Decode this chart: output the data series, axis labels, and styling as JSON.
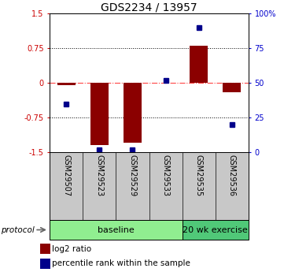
{
  "title": "GDS2234 / 13957",
  "samples": [
    "GSM29507",
    "GSM29523",
    "GSM29529",
    "GSM29533",
    "GSM29535",
    "GSM29536"
  ],
  "log2_ratio": [
    -0.05,
    -1.35,
    -1.3,
    0.0,
    0.8,
    -0.2
  ],
  "percentile_rank": [
    35,
    2,
    2,
    52,
    90,
    20
  ],
  "group_baseline_n": 4,
  "group_exercise_n": 2,
  "group_baseline_label": "baseline",
  "group_exercise_label": "20 wk exercise",
  "group_baseline_color": "#90EE90",
  "group_exercise_color": "#50C878",
  "ylim_left": [
    -1.5,
    1.5
  ],
  "ylim_right": [
    0,
    100
  ],
  "yticks_left": [
    -1.5,
    -0.75,
    0,
    0.75,
    1.5
  ],
  "ytick_labels_left": [
    "-1.5",
    "-0.75",
    "0",
    "0.75",
    "1.5"
  ],
  "ytick_labels_right": [
    "0",
    "25",
    "50",
    "75",
    "100%"
  ],
  "bar_color": "#8B0000",
  "dot_color": "#00008B",
  "hline_color": "#FF4444",
  "grid_color": "#000000",
  "left_label_color": "#CC0000",
  "right_label_color": "#0000CC",
  "sample_box_color": "#C8C8C8",
  "legend_bar_label": "log2 ratio",
  "legend_dot_label": "percentile rank within the sample",
  "protocol_label": "protocol",
  "tick_fontsize": 7,
  "title_fontsize": 10,
  "sample_fontsize": 7,
  "group_fontsize": 8,
  "legend_fontsize": 7.5
}
